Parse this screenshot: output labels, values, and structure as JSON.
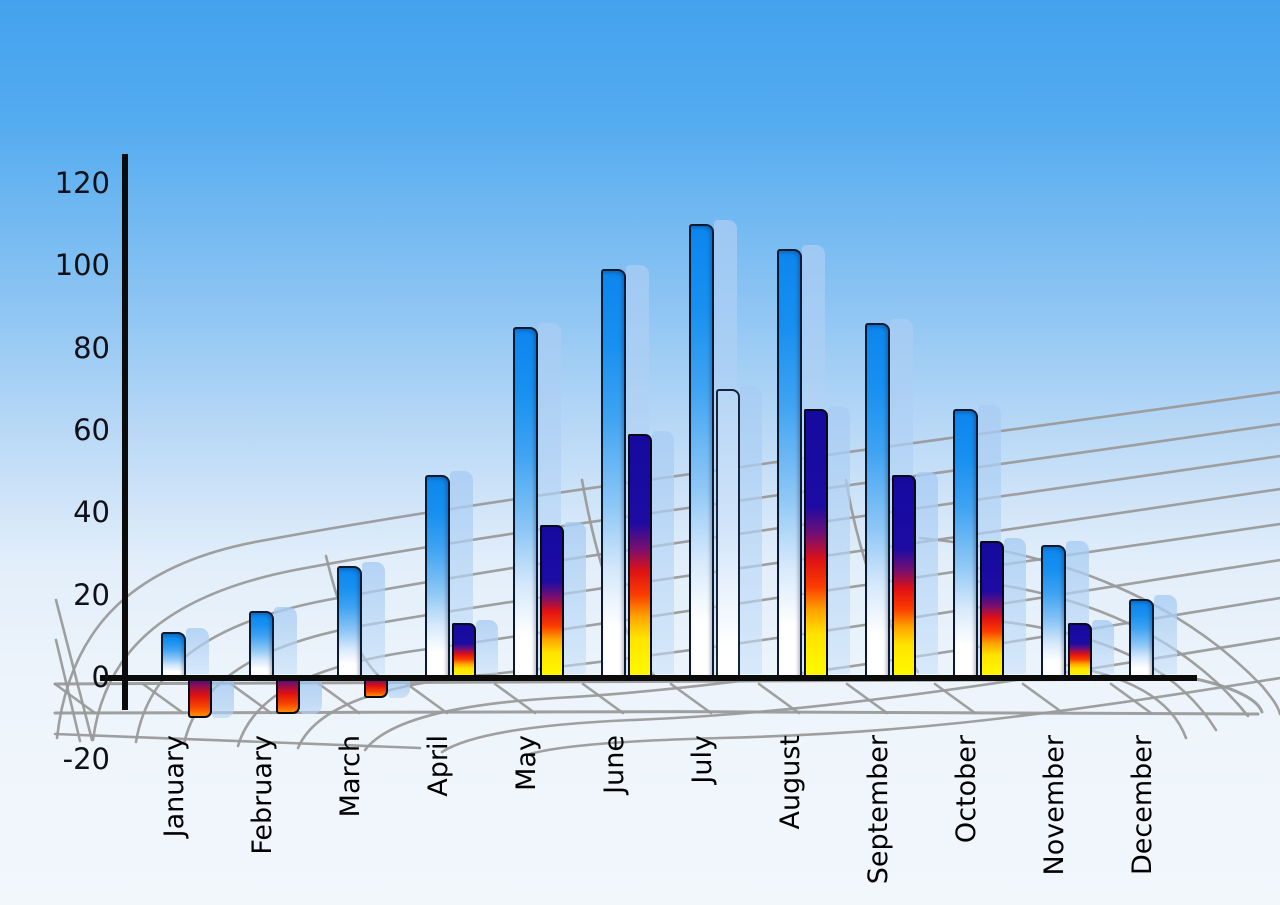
{
  "chart_data": {
    "type": "bar",
    "title": "",
    "xlabel": "",
    "ylabel": "",
    "categories": [
      "January",
      "February",
      "March",
      "April",
      "May",
      "June",
      "July",
      "August",
      "September",
      "October",
      "November",
      "December"
    ],
    "series": [
      {
        "name": "primary-blue-bars",
        "values": [
          11,
          16,
          27,
          49,
          85,
          99,
          110,
          104,
          86,
          65,
          32,
          19
        ]
      },
      {
        "name": "secondary-flame-bars",
        "values": [
          -10,
          -9,
          -5,
          13,
          37,
          59,
          70,
          65,
          49,
          33,
          13,
          null
        ]
      }
    ],
    "series2_bar_styles": [
      "flame",
      "flame",
      "flame",
      "flame",
      "flame",
      "flame",
      "light",
      "flame",
      "flame",
      "flame",
      "flame",
      null
    ],
    "ylim": [
      -20,
      120
    ],
    "ytick_step": 20,
    "ytick_values": [
      120,
      100,
      80,
      60,
      40,
      20,
      0,
      -20
    ],
    "ytick_labels": [
      "120",
      "100",
      "80",
      "60",
      "40",
      "20",
      "0",
      "-20"
    ],
    "legend_position": "none",
    "grid": "decorative grey curved perspective mesh behind bars",
    "bar_shadow": "translucent light-blue offset copy behind each bar"
  },
  "colors": {
    "sky_top": "#43a2ee",
    "sky_bottom": "#f2f7fc",
    "bar_blue_top": "#0c86ee",
    "bar_blue_bottom": "#ffffff",
    "flame_navy": "#150a9e",
    "flame_red": "#e01114",
    "flame_orange": "#ff9e00",
    "flame_yellow": "#fff600",
    "light_bar_top": "#b7d6f6",
    "shadow_bar": "rgba(168,204,243,0.8)",
    "axis": "#0b0b0b",
    "mesh": "#9a9a9a",
    "tick_text": "#101018",
    "month_text": "#000000"
  }
}
